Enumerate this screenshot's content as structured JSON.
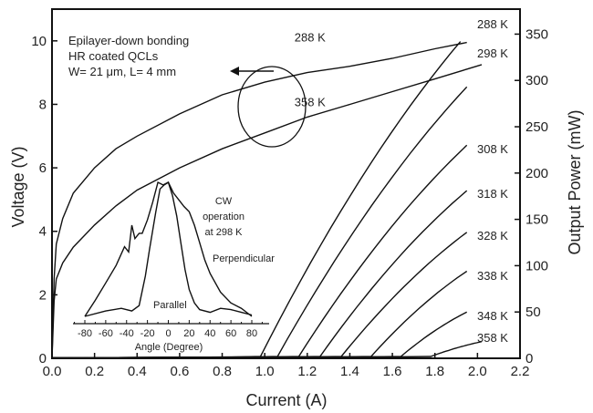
{
  "chart_data": {
    "type": "line",
    "xlabel": "Current (A)",
    "ylabel": "Voltage (V)",
    "y2label": "Output Power (mW)",
    "xlim": [
      0,
      2.2
    ],
    "ylim": [
      0,
      11
    ],
    "y2lim": [
      0,
      377
    ],
    "xticks": [
      "0.0",
      "0.2",
      "0.4",
      "0.6",
      "0.8",
      "1.0",
      "1.2",
      "1.4",
      "1.6",
      "1.8",
      "2.0",
      "2.2"
    ],
    "yticks": [
      "0",
      "2",
      "4",
      "6",
      "8",
      "10"
    ],
    "y2ticks": [
      "0",
      "50",
      "100",
      "150",
      "200",
      "250",
      "300",
      "350"
    ],
    "annotation_lines": [
      "Epilayer-down bonding",
      "HR coated QCLs",
      "W= 21 μm, L= 4 mm"
    ],
    "voltage_series": [
      {
        "name": "288 K",
        "x": [
          0,
          0.01,
          0.02,
          0.05,
          0.1,
          0.2,
          0.3,
          0.4,
          0.6,
          0.8,
          1.0,
          1.2,
          1.4,
          1.6,
          1.8,
          1.95
        ],
        "y": [
          0,
          2.5,
          3.6,
          4.4,
          5.2,
          6.0,
          6.6,
          7.0,
          7.7,
          8.3,
          8.7,
          9.0,
          9.2,
          9.45,
          9.75,
          9.95
        ]
      },
      {
        "name": "358 K",
        "x": [
          0,
          0.01,
          0.02,
          0.05,
          0.1,
          0.2,
          0.3,
          0.4,
          0.6,
          0.8,
          1.0,
          1.2,
          1.4,
          1.6,
          1.8,
          2.02
        ],
        "y": [
          0,
          1.8,
          2.5,
          3.0,
          3.5,
          4.2,
          4.8,
          5.3,
          6.0,
          6.6,
          7.1,
          7.6,
          8.0,
          8.4,
          8.8,
          9.25
        ]
      }
    ],
    "power_series": [
      {
        "name": "288 K",
        "threshold": 0.98,
        "x_end": 1.92,
        "p_end": 342
      },
      {
        "name": "298 K",
        "threshold": 1.06,
        "x_end": 1.95,
        "p_end": 293
      },
      {
        "name": "308 K",
        "threshold": 1.16,
        "x_end": 1.95,
        "p_end": 230
      },
      {
        "name": "318 K",
        "threshold": 1.26,
        "x_end": 1.95,
        "p_end": 181
      },
      {
        "name": "328 K",
        "threshold": 1.36,
        "x_end": 1.95,
        "p_end": 136
      },
      {
        "name": "338 K",
        "threshold": 1.5,
        "x_end": 1.95,
        "p_end": 94
      },
      {
        "name": "348 K",
        "threshold": 1.64,
        "x_end": 1.95,
        "p_end": 50
      },
      {
        "name": "358 K",
        "threshold": 1.78,
        "x_end": 2.02,
        "p_end": 18
      }
    ],
    "inset": {
      "xlabel": "Angle (Degree)",
      "xticks": [
        "-80",
        "-60",
        "-40",
        "-20",
        "0",
        "20",
        "40",
        "60",
        "80"
      ],
      "text": [
        "CW",
        "operation",
        "at 298 K"
      ],
      "series": [
        {
          "name": "Perpendicular",
          "x": [
            -80,
            -70,
            -60,
            -50,
            -42,
            -38,
            -35,
            -32,
            -28,
            -25,
            -20,
            -15,
            -10,
            -5,
            0,
            5,
            10,
            15,
            20,
            25,
            30,
            35,
            40,
            50,
            60,
            70,
            80
          ],
          "y": [
            0,
            0.12,
            0.25,
            0.38,
            0.52,
            0.48,
            0.68,
            0.58,
            0.62,
            0.62,
            0.72,
            0.85,
            1.0,
            0.98,
            1.0,
            0.92,
            0.87,
            0.82,
            0.78,
            0.68,
            0.55,
            0.42,
            0.32,
            0.18,
            0.1,
            0.06,
            0.0
          ]
        },
        {
          "name": "Parallel",
          "x": [
            -80,
            -60,
            -45,
            -35,
            -28,
            -22,
            -18,
            -12,
            -8,
            -4,
            0,
            4,
            8,
            12,
            16,
            20,
            25,
            30,
            40,
            50,
            60,
            70,
            80
          ],
          "y": [
            0,
            0.04,
            0.06,
            0.04,
            0.08,
            0.3,
            0.5,
            0.78,
            0.95,
            0.98,
            1.0,
            0.9,
            0.75,
            0.55,
            0.35,
            0.2,
            0.1,
            0.05,
            0.03,
            0.06,
            0.05,
            0.03,
            0.01
          ]
        }
      ]
    }
  }
}
